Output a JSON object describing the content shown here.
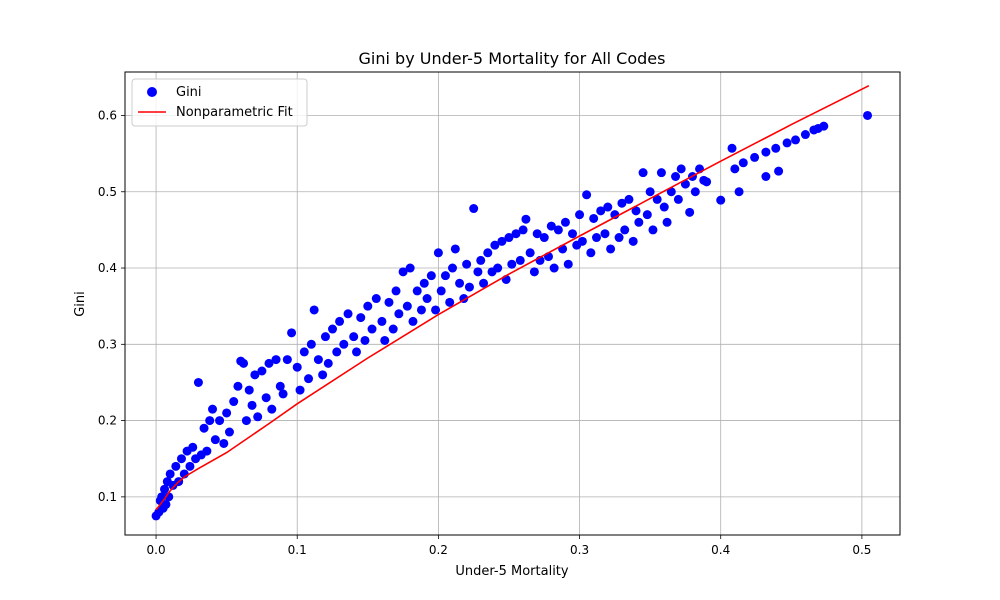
{
  "chart_data": {
    "type": "scatter",
    "title": "Gini by Under-5 Mortality for All Codes",
    "xlabel": "Under-5 Mortality",
    "ylabel": "Gini",
    "xlim": [
      -0.022,
      0.527
    ],
    "ylim": [
      0.05,
      0.657
    ],
    "xticks": [
      0.0,
      0.1,
      0.2,
      0.3,
      0.4,
      0.5
    ],
    "yticks": [
      0.1,
      0.2,
      0.3,
      0.4,
      0.5,
      0.6
    ],
    "xtick_labels": [
      "0.0",
      "0.1",
      "0.2",
      "0.3",
      "0.4",
      "0.5"
    ],
    "ytick_labels": [
      "0.1",
      "0.2",
      "0.3",
      "0.4",
      "0.5",
      "0.6"
    ],
    "grid": true,
    "legend_position": "upper-left",
    "series": [
      {
        "name": "Gini",
        "kind": "scatter",
        "color": "#0000ff",
        "points": [
          [
            0.0,
            0.075
          ],
          [
            0.002,
            0.08
          ],
          [
            0.003,
            0.095
          ],
          [
            0.004,
            0.1
          ],
          [
            0.005,
            0.085
          ],
          [
            0.006,
            0.11
          ],
          [
            0.007,
            0.09
          ],
          [
            0.008,
            0.12
          ],
          [
            0.009,
            0.1
          ],
          [
            0.01,
            0.13
          ],
          [
            0.012,
            0.115
          ],
          [
            0.014,
            0.14
          ],
          [
            0.016,
            0.12
          ],
          [
            0.018,
            0.15
          ],
          [
            0.02,
            0.13
          ],
          [
            0.022,
            0.16
          ],
          [
            0.024,
            0.14
          ],
          [
            0.026,
            0.165
          ],
          [
            0.028,
            0.15
          ],
          [
            0.03,
            0.25
          ],
          [
            0.032,
            0.155
          ],
          [
            0.034,
            0.19
          ],
          [
            0.036,
            0.16
          ],
          [
            0.038,
            0.2
          ],
          [
            0.04,
            0.215
          ],
          [
            0.042,
            0.175
          ],
          [
            0.045,
            0.2
          ],
          [
            0.048,
            0.17
          ],
          [
            0.05,
            0.21
          ],
          [
            0.052,
            0.185
          ],
          [
            0.055,
            0.225
          ],
          [
            0.058,
            0.245
          ],
          [
            0.06,
            0.278
          ],
          [
            0.062,
            0.275
          ],
          [
            0.064,
            0.2
          ],
          [
            0.066,
            0.24
          ],
          [
            0.068,
            0.22
          ],
          [
            0.07,
            0.26
          ],
          [
            0.072,
            0.205
          ],
          [
            0.075,
            0.265
          ],
          [
            0.078,
            0.23
          ],
          [
            0.08,
            0.275
          ],
          [
            0.082,
            0.215
          ],
          [
            0.085,
            0.28
          ],
          [
            0.088,
            0.245
          ],
          [
            0.09,
            0.235
          ],
          [
            0.093,
            0.28
          ],
          [
            0.096,
            0.315
          ],
          [
            0.1,
            0.27
          ],
          [
            0.102,
            0.24
          ],
          [
            0.105,
            0.29
          ],
          [
            0.108,
            0.255
          ],
          [
            0.11,
            0.3
          ],
          [
            0.112,
            0.345
          ],
          [
            0.115,
            0.28
          ],
          [
            0.118,
            0.26
          ],
          [
            0.12,
            0.31
          ],
          [
            0.122,
            0.275
          ],
          [
            0.125,
            0.32
          ],
          [
            0.128,
            0.29
          ],
          [
            0.13,
            0.33
          ],
          [
            0.133,
            0.3
          ],
          [
            0.136,
            0.34
          ],
          [
            0.14,
            0.31
          ],
          [
            0.142,
            0.29
          ],
          [
            0.145,
            0.335
          ],
          [
            0.148,
            0.305
          ],
          [
            0.15,
            0.35
          ],
          [
            0.153,
            0.32
          ],
          [
            0.156,
            0.36
          ],
          [
            0.16,
            0.33
          ],
          [
            0.162,
            0.305
          ],
          [
            0.165,
            0.355
          ],
          [
            0.168,
            0.32
          ],
          [
            0.17,
            0.37
          ],
          [
            0.172,
            0.34
          ],
          [
            0.175,
            0.395
          ],
          [
            0.178,
            0.35
          ],
          [
            0.18,
            0.4
          ],
          [
            0.182,
            0.33
          ],
          [
            0.185,
            0.37
          ],
          [
            0.188,
            0.345
          ],
          [
            0.19,
            0.38
          ],
          [
            0.192,
            0.36
          ],
          [
            0.195,
            0.39
          ],
          [
            0.198,
            0.345
          ],
          [
            0.2,
            0.42
          ],
          [
            0.202,
            0.37
          ],
          [
            0.205,
            0.39
          ],
          [
            0.208,
            0.355
          ],
          [
            0.21,
            0.4
          ],
          [
            0.212,
            0.425
          ],
          [
            0.215,
            0.38
          ],
          [
            0.218,
            0.36
          ],
          [
            0.22,
            0.405
          ],
          [
            0.222,
            0.375
          ],
          [
            0.225,
            0.478
          ],
          [
            0.228,
            0.395
          ],
          [
            0.23,
            0.41
          ],
          [
            0.232,
            0.38
          ],
          [
            0.235,
            0.42
          ],
          [
            0.238,
            0.395
          ],
          [
            0.24,
            0.43
          ],
          [
            0.242,
            0.4
          ],
          [
            0.245,
            0.435
          ],
          [
            0.248,
            0.385
          ],
          [
            0.25,
            0.44
          ],
          [
            0.252,
            0.405
          ],
          [
            0.255,
            0.445
          ],
          [
            0.258,
            0.41
          ],
          [
            0.26,
            0.45
          ],
          [
            0.262,
            0.464
          ],
          [
            0.265,
            0.42
          ],
          [
            0.268,
            0.395
          ],
          [
            0.27,
            0.445
          ],
          [
            0.272,
            0.41
          ],
          [
            0.275,
            0.44
          ],
          [
            0.278,
            0.415
          ],
          [
            0.28,
            0.455
          ],
          [
            0.282,
            0.4
          ],
          [
            0.285,
            0.45
          ],
          [
            0.288,
            0.425
          ],
          [
            0.29,
            0.46
          ],
          [
            0.292,
            0.405
          ],
          [
            0.295,
            0.445
          ],
          [
            0.298,
            0.43
          ],
          [
            0.3,
            0.47
          ],
          [
            0.302,
            0.435
          ],
          [
            0.305,
            0.496
          ],
          [
            0.308,
            0.42
          ],
          [
            0.31,
            0.465
          ],
          [
            0.312,
            0.44
          ],
          [
            0.315,
            0.475
          ],
          [
            0.318,
            0.445
          ],
          [
            0.32,
            0.48
          ],
          [
            0.322,
            0.425
          ],
          [
            0.325,
            0.47
          ],
          [
            0.328,
            0.44
          ],
          [
            0.33,
            0.485
          ],
          [
            0.332,
            0.45
          ],
          [
            0.335,
            0.49
          ],
          [
            0.338,
            0.435
          ],
          [
            0.34,
            0.475
          ],
          [
            0.342,
            0.46
          ],
          [
            0.345,
            0.525
          ],
          [
            0.348,
            0.47
          ],
          [
            0.35,
            0.5
          ],
          [
            0.352,
            0.45
          ],
          [
            0.355,
            0.49
          ],
          [
            0.358,
            0.525
          ],
          [
            0.36,
            0.48
          ],
          [
            0.362,
            0.46
          ],
          [
            0.365,
            0.5
          ],
          [
            0.368,
            0.52
          ],
          [
            0.37,
            0.49
          ],
          [
            0.372,
            0.53
          ],
          [
            0.375,
            0.51
          ],
          [
            0.378,
            0.473
          ],
          [
            0.38,
            0.52
          ],
          [
            0.382,
            0.5
          ],
          [
            0.385,
            0.53
          ],
          [
            0.388,
            0.515
          ],
          [
            0.39,
            0.513
          ],
          [
            0.4,
            0.489
          ],
          [
            0.408,
            0.557
          ],
          [
            0.41,
            0.53
          ],
          [
            0.413,
            0.5
          ],
          [
            0.416,
            0.538
          ],
          [
            0.424,
            0.545
          ],
          [
            0.432,
            0.52
          ],
          [
            0.432,
            0.552
          ],
          [
            0.439,
            0.557
          ],
          [
            0.441,
            0.527
          ],
          [
            0.447,
            0.564
          ],
          [
            0.453,
            0.568
          ],
          [
            0.46,
            0.575
          ],
          [
            0.466,
            0.581
          ],
          [
            0.469,
            0.583
          ],
          [
            0.473,
            0.586
          ],
          [
            0.504,
            0.6
          ]
        ]
      },
      {
        "name": "Nonparametric Fit",
        "kind": "line",
        "color": "#ff0000",
        "points": [
          [
            0.0,
            0.083
          ],
          [
            0.005,
            0.095
          ],
          [
            0.01,
            0.108
          ],
          [
            0.015,
            0.118
          ],
          [
            0.02,
            0.126
          ],
          [
            0.03,
            0.137
          ],
          [
            0.05,
            0.158
          ],
          [
            0.08,
            0.196
          ],
          [
            0.1,
            0.222
          ],
          [
            0.15,
            0.282
          ],
          [
            0.2,
            0.339
          ],
          [
            0.25,
            0.392
          ],
          [
            0.3,
            0.442
          ],
          [
            0.35,
            0.491
          ],
          [
            0.4,
            0.54
          ],
          [
            0.45,
            0.588
          ],
          [
            0.505,
            0.639
          ]
        ]
      }
    ]
  }
}
